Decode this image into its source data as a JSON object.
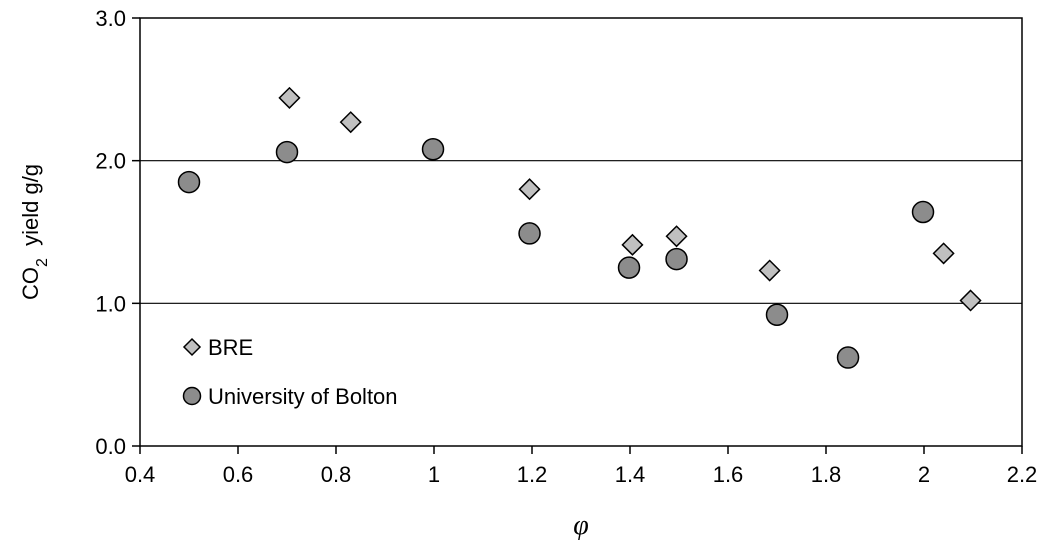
{
  "chart_data": {
    "type": "scatter",
    "xlabel": "φ",
    "ylabel": {
      "prefix": "CO",
      "subscript": "2",
      "suffix": "  yield g/g"
    },
    "xlim": [
      0.4,
      2.2
    ],
    "ylim": [
      0.0,
      3.0
    ],
    "x_ticks": [
      0.4,
      0.6,
      0.8,
      1.0,
      1.2,
      1.4,
      1.6,
      1.8,
      2.0,
      2.2
    ],
    "x_tick_labels": [
      "0.4",
      "0.6",
      "0.8",
      "1",
      "1.2",
      "1.4",
      "1.6",
      "1.8",
      "2",
      "2.2"
    ],
    "y_ticks": [
      0.0,
      1.0,
      2.0,
      3.0
    ],
    "y_tick_labels": [
      "0.0",
      "1.0",
      "2.0",
      "3.0"
    ],
    "gridlines": "horizontal",
    "legend_placement": "bottom-left",
    "series": [
      {
        "name": "BRE",
        "marker": "diamond",
        "color": "#c0c0c0",
        "points": [
          {
            "x": 0.705,
            "y": 2.44
          },
          {
            "x": 0.83,
            "y": 2.27
          },
          {
            "x": 1.195,
            "y": 1.8
          },
          {
            "x": 1.405,
            "y": 1.41
          },
          {
            "x": 1.495,
            "y": 1.47
          },
          {
            "x": 1.685,
            "y": 1.23
          },
          {
            "x": 2.04,
            "y": 1.35
          },
          {
            "x": 2.095,
            "y": 1.02
          }
        ]
      },
      {
        "name": "University of Bolton",
        "marker": "circle",
        "color": "#8c8c8c",
        "points": [
          {
            "x": 0.5,
            "y": 1.85
          },
          {
            "x": 0.7,
            "y": 2.06
          },
          {
            "x": 0.998,
            "y": 2.08
          },
          {
            "x": 1.195,
            "y": 1.49
          },
          {
            "x": 1.398,
            "y": 1.25
          },
          {
            "x": 1.495,
            "y": 1.31
          },
          {
            "x": 1.7,
            "y": 0.92
          },
          {
            "x": 1.845,
            "y": 0.62
          },
          {
            "x": 1.998,
            "y": 1.64
          }
        ]
      }
    ]
  }
}
